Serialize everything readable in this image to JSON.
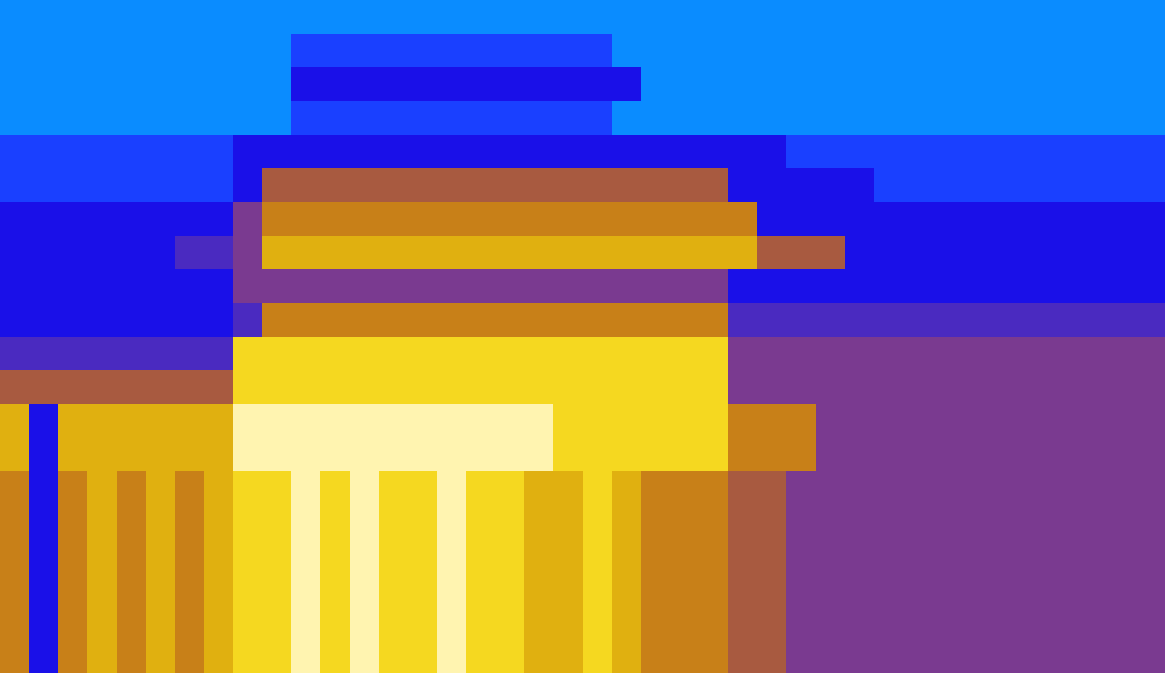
{
  "chart_data": {
    "type": "heatmap",
    "tick_labels": false,
    "color_range": [
      0,
      10
    ],
    "cells": [
      [
        1,
        1,
        1,
        1,
        1,
        1,
        1,
        1,
        1,
        1,
        1,
        1,
        1,
        1,
        1,
        1,
        1,
        1,
        1,
        1,
        1,
        1,
        1,
        1,
        1,
        1,
        1,
        1,
        1,
        1,
        1,
        1,
        1,
        1,
        1,
        1,
        1,
        1,
        1,
        1
      ],
      [
        1,
        1,
        1,
        1,
        1,
        1,
        1,
        1,
        1,
        1,
        2,
        2,
        2,
        2,
        2,
        2,
        2,
        2,
        2,
        2,
        2,
        1,
        1,
        1,
        1,
        1,
        1,
        1,
        1,
        1,
        1,
        1,
        1,
        1,
        1,
        1,
        1,
        1,
        1,
        1
      ],
      [
        1,
        1,
        1,
        1,
        1,
        1,
        1,
        1,
        1,
        1,
        3,
        3,
        3,
        3,
        3,
        3,
        3,
        3,
        3,
        3,
        3,
        3,
        1,
        1,
        1,
        1,
        1,
        1,
        1,
        1,
        1,
        1,
        1,
        1,
        1,
        1,
        1,
        1,
        1,
        1
      ],
      [
        1,
        1,
        1,
        1,
        1,
        1,
        1,
        1,
        1,
        1,
        2,
        2,
        2,
        2,
        2,
        2,
        2,
        2,
        2,
        2,
        2,
        1,
        1,
        1,
        1,
        1,
        1,
        1,
        1,
        1,
        1,
        1,
        1,
        1,
        1,
        1,
        1,
        1,
        1,
        1
      ],
      [
        2,
        2,
        2,
        2,
        2,
        2,
        2,
        2,
        3,
        3,
        3,
        3,
        3,
        3,
        3,
        3,
        3,
        3,
        3,
        3,
        3,
        3,
        3,
        3,
        3,
        3,
        3,
        2,
        2,
        2,
        2,
        2,
        2,
        2,
        2,
        2,
        2,
        2,
        2,
        2
      ],
      [
        2,
        2,
        2,
        2,
        2,
        2,
        2,
        2,
        3,
        6,
        6,
        6,
        6,
        6,
        6,
        6,
        6,
        6,
        6,
        6,
        6,
        6,
        6,
        6,
        6,
        3,
        3,
        3,
        3,
        3,
        2,
        2,
        2,
        2,
        2,
        2,
        2,
        2,
        2,
        2
      ],
      [
        3,
        3,
        3,
        3,
        3,
        3,
        3,
        3,
        5,
        7,
        7,
        7,
        7,
        7,
        7,
        7,
        7,
        7,
        7,
        7,
        7,
        7,
        7,
        7,
        7,
        7,
        3,
        3,
        3,
        3,
        3,
        3,
        3,
        3,
        3,
        3,
        3,
        3,
        3,
        3
      ],
      [
        3,
        3,
        3,
        3,
        3,
        3,
        4,
        4,
        5,
        8,
        8,
        8,
        8,
        8,
        8,
        8,
        8,
        8,
        8,
        8,
        8,
        8,
        8,
        8,
        8,
        8,
        6,
        6,
        6,
        3,
        3,
        3,
        3,
        3,
        3,
        3,
        3,
        3,
        3,
        3
      ],
      [
        3,
        3,
        3,
        3,
        3,
        3,
        3,
        3,
        5,
        5,
        5,
        5,
        5,
        5,
        5,
        5,
        5,
        5,
        5,
        5,
        5,
        5,
        5,
        5,
        5,
        3,
        3,
        3,
        3,
        3,
        3,
        3,
        3,
        3,
        3,
        3,
        3,
        3,
        3,
        3
      ],
      [
        3,
        3,
        3,
        3,
        3,
        3,
        3,
        3,
        4,
        7,
        7,
        7,
        7,
        7,
        7,
        7,
        7,
        7,
        7,
        7,
        7,
        7,
        7,
        7,
        7,
        4,
        4,
        4,
        4,
        4,
        4,
        4,
        4,
        4,
        4,
        4,
        4,
        4,
        4,
        4
      ],
      [
        4,
        4,
        4,
        4,
        4,
        4,
        4,
        4,
        9,
        9,
        9,
        9,
        9,
        9,
        9,
        9,
        9,
        9,
        9,
        9,
        9,
        9,
        9,
        9,
        9,
        5,
        5,
        5,
        5,
        5,
        5,
        5,
        5,
        5,
        5,
        5,
        5,
        5,
        5,
        5
      ],
      [
        6,
        6,
        6,
        6,
        6,
        6,
        6,
        6,
        9,
        9,
        9,
        9,
        9,
        9,
        9,
        9,
        9,
        9,
        9,
        9,
        9,
        9,
        9,
        9,
        9,
        5,
        5,
        5,
        5,
        5,
        5,
        5,
        5,
        5,
        5,
        5,
        5,
        5,
        5,
        5
      ],
      [
        8,
        3,
        8,
        8,
        8,
        8,
        8,
        8,
        10,
        10,
        10,
        10,
        10,
        10,
        10,
        10,
        10,
        10,
        10,
        9,
        9,
        9,
        9,
        9,
        9,
        7,
        7,
        7,
        5,
        5,
        5,
        5,
        5,
        5,
        5,
        5,
        5,
        5,
        5,
        5
      ],
      [
        8,
        3,
        8,
        8,
        8,
        8,
        8,
        8,
        10,
        10,
        10,
        10,
        10,
        10,
        10,
        10,
        10,
        10,
        10,
        9,
        9,
        9,
        9,
        9,
        9,
        7,
        7,
        7,
        5,
        5,
        5,
        5,
        5,
        5,
        5,
        5,
        5,
        5,
        5,
        5
      ],
      [
        7,
        3,
        7,
        8,
        7,
        8,
        7,
        8,
        9,
        9,
        10,
        9,
        10,
        9,
        9,
        10,
        9,
        9,
        8,
        8,
        9,
        8,
        7,
        7,
        7,
        6,
        6,
        5,
        5,
        5,
        5,
        5,
        5,
        5,
        5,
        5,
        5,
        5,
        5,
        5
      ],
      [
        7,
        3,
        7,
        8,
        7,
        8,
        7,
        8,
        9,
        9,
        10,
        9,
        10,
        9,
        9,
        10,
        9,
        9,
        8,
        8,
        9,
        8,
        7,
        7,
        7,
        6,
        6,
        5,
        5,
        5,
        5,
        5,
        5,
        5,
        5,
        5,
        5,
        5,
        5,
        5
      ],
      [
        7,
        3,
        7,
        8,
        7,
        8,
        7,
        8,
        9,
        9,
        10,
        9,
        10,
        9,
        9,
        10,
        9,
        9,
        8,
        8,
        9,
        8,
        7,
        7,
        7,
        6,
        6,
        5,
        5,
        5,
        5,
        5,
        5,
        5,
        5,
        5,
        5,
        5,
        5,
        5
      ],
      [
        7,
        3,
        7,
        8,
        7,
        8,
        7,
        8,
        9,
        9,
        10,
        9,
        10,
        9,
        9,
        10,
        9,
        9,
        8,
        8,
        9,
        8,
        7,
        7,
        7,
        6,
        6,
        5,
        5,
        5,
        5,
        5,
        5,
        5,
        5,
        5,
        5,
        5,
        5,
        5
      ],
      [
        7,
        3,
        7,
        8,
        7,
        8,
        7,
        8,
        9,
        9,
        10,
        9,
        10,
        9,
        9,
        10,
        9,
        9,
        8,
        8,
        9,
        8,
        7,
        7,
        7,
        6,
        6,
        5,
        5,
        5,
        5,
        5,
        5,
        5,
        5,
        5,
        5,
        5,
        5,
        5
      ],
      [
        7,
        3,
        7,
        8,
        7,
        8,
        7,
        8,
        9,
        9,
        10,
        9,
        10,
        9,
        9,
        10,
        9,
        9,
        8,
        8,
        9,
        8,
        7,
        7,
        7,
        6,
        6,
        5,
        5,
        5,
        5,
        5,
        5,
        5,
        5,
        5,
        5,
        5,
        5,
        5
      ]
    ]
  }
}
